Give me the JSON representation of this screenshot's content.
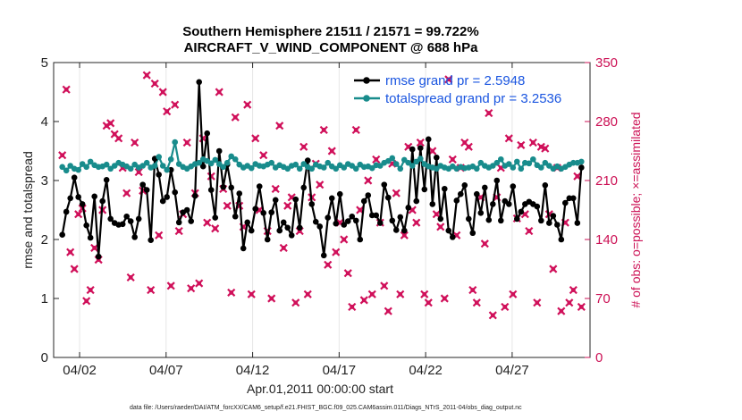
{
  "chart_data": {
    "type": "line",
    "title_line1": "Southern Hemisphere 21511 / 21571 = 99.722%",
    "title_line2": "AIRCRAFT_V_WIND_COMPONENT @ 688 hPa",
    "xlabel": "Apr.01,2011 00:00:00 start",
    "ylabel": "rmse and totalspread",
    "ylabel_right": "# of obs: o=possible; ×=assimilated",
    "footnote": "data file: /Users/raeder/DAI/ATM_forcXX/CAM6_setup/f.e21.FHIST_BGC.f09_025.CAM6assim.011/Diags_NTrS_2011-04/obs_diag_output.nc",
    "xlim": [
      0.5,
      31.5
    ],
    "ylim": [
      0,
      5
    ],
    "ylim_right": [
      0,
      350
    ],
    "x_ticks": [
      2,
      7,
      12,
      17,
      22,
      27
    ],
    "x_tick_labels": [
      "04/02",
      "04/07",
      "04/12",
      "04/17",
      "04/22",
      "04/27"
    ],
    "y_ticks": [
      "0",
      "1",
      "2",
      "3",
      "4",
      "5"
    ],
    "y_ticks_right": [
      "0",
      "70",
      "140",
      "210",
      "280",
      "350"
    ],
    "series": [
      {
        "name": "rmse grand pr = 2.5948",
        "color": "#000000",
        "marker": "dot",
        "values": [
          2.08,
          2.47,
          2.7,
          3.05,
          2.72,
          2.6,
          2.24,
          2.03,
          2.73,
          1.71,
          2.65,
          3.01,
          2.35,
          2.28,
          2.25,
          2.26,
          2.39,
          2.31,
          2.04,
          2.35,
          2.93,
          2.84,
          1.99,
          3.37,
          3.1,
          2.65,
          2.72,
          3.18,
          2.8,
          2.29,
          2.46,
          2.5,
          2.31,
          2.74,
          4.67,
          3.24,
          3.8,
          2.84,
          2.37,
          3.5,
          2.89,
          3.27,
          2.88,
          2.39,
          2.78,
          1.85,
          2.29,
          2.15,
          2.52,
          2.9,
          2.45,
          2.0,
          2.46,
          2.67,
          2.15,
          2.29,
          2.2,
          2.07,
          2.68,
          2.2,
          2.88,
          3.34,
          2.6,
          2.3,
          2.22,
          1.73,
          2.37,
          2.7,
          2.27,
          2.77,
          2.25,
          2.31,
          2.39,
          2.32,
          2.0,
          2.65,
          2.75,
          2.41,
          2.41,
          2.28,
          2.93,
          2.71,
          2.32,
          2.16,
          2.38,
          2.15,
          2.54,
          3.53,
          2.65,
          3.55,
          2.85,
          3.7,
          2.6,
          3.39,
          2.35,
          2.86,
          2.15,
          2.04,
          2.66,
          2.77,
          2.92,
          2.35,
          2.11,
          2.77,
          2.45,
          2.88,
          2.33,
          2.6,
          3.0,
          2.32,
          2.65,
          2.6,
          2.9,
          2.35,
          2.47,
          2.6,
          2.64,
          2.6,
          2.56,
          2.32,
          2.92,
          2.28,
          2.4,
          2.25,
          2.0,
          2.62,
          2.7,
          2.7,
          2.28,
          3.22
        ]
      },
      {
        "name": "totalspread grand pr = 3.2536",
        "color": "#188c8c",
        "marker": "dot",
        "values": [
          3.23,
          3.17,
          3.25,
          3.2,
          3.18,
          3.28,
          3.23,
          3.32,
          3.26,
          3.23,
          3.24,
          3.27,
          3.2,
          3.25,
          3.3,
          3.27,
          3.24,
          3.2,
          3.27,
          3.22,
          3.25,
          3.3,
          3.22,
          3.25,
          3.4,
          3.25,
          3.18,
          3.36,
          3.65,
          3.28,
          3.23,
          3.2,
          3.24,
          3.28,
          3.3,
          3.36,
          3.33,
          3.29,
          3.35,
          3.28,
          3.23,
          3.3,
          3.41,
          3.36,
          3.27,
          3.22,
          3.25,
          3.21,
          3.28,
          3.25,
          3.24,
          3.27,
          3.3,
          3.22,
          3.26,
          3.23,
          3.2,
          3.25,
          3.27,
          3.2,
          3.28,
          3.23,
          3.2,
          3.27,
          3.24,
          3.22,
          3.3,
          3.24,
          3.2,
          3.26,
          3.22,
          3.28,
          3.25,
          3.2,
          3.27,
          3.23,
          3.24,
          3.21,
          3.26,
          3.25,
          3.3,
          3.33,
          3.38,
          3.28,
          3.2,
          3.35,
          3.3,
          3.25,
          3.32,
          3.37,
          3.28,
          3.24,
          3.22,
          3.2,
          3.25,
          3.22,
          3.2,
          3.24,
          3.2,
          3.23,
          3.21,
          3.22,
          3.24,
          3.2,
          3.3,
          3.25,
          3.22,
          3.25,
          3.3,
          3.36,
          3.25,
          3.28,
          3.22,
          3.32,
          3.2,
          3.3,
          3.29,
          3.36,
          3.26,
          3.22,
          3.3,
          3.25,
          3.2,
          3.24,
          3.2,
          3.23,
          3.27,
          3.3,
          3.3,
          3.32
        ]
      }
    ],
    "obs_possible": [
      240,
      318,
      125,
      105,
      170,
      177,
      67,
      80,
      130,
      116,
      175,
      275,
      278,
      265,
      260,
      225,
      195,
      95,
      255,
      220,
      198,
      335,
      80,
      325,
      145,
      315,
      292,
      85,
      300,
      150,
      170,
      255,
      82,
      195,
      88,
      260,
      160,
      215,
      153,
      315,
      200,
      180,
      77,
      285,
      180,
      155,
      300,
      75,
      260,
      175,
      240,
      150,
      70,
      200,
      275,
      130,
      180,
      190,
      65,
      150,
      250,
      75,
      190,
      230,
      205,
      270,
      110,
      245,
      125,
      160,
      140,
      100,
      60,
      270,
      175,
      68,
      210,
      75,
      235,
      160,
      85,
      55,
      230,
      195,
      75,
      145,
      250,
      175,
      160,
      255,
      75,
      65,
      245,
      170,
      155,
      70,
      330,
      235,
      145,
      225,
      255,
      250,
      80,
      65,
      190,
      135,
      290,
      50,
      190,
      225,
      60,
      260,
      75,
      165,
      252,
      170,
      150,
      255,
      65,
      250,
      248,
      170,
      105,
      225,
      55,
      160,
      65,
      80,
      215,
      60
    ]
  }
}
